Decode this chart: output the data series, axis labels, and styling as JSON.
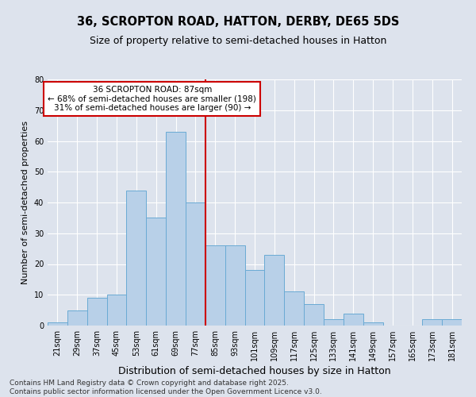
{
  "title1": "36, SCROPTON ROAD, HATTON, DERBY, DE65 5DS",
  "title2": "Size of property relative to semi-detached houses in Hatton",
  "xlabel": "Distribution of semi-detached houses by size in Hatton",
  "ylabel": "Number of semi-detached properties",
  "categories": [
    "21sqm",
    "29sqm",
    "37sqm",
    "45sqm",
    "53sqm",
    "61sqm",
    "69sqm",
    "77sqm",
    "85sqm",
    "93sqm",
    "101sqm",
    "109sqm",
    "117sqm",
    "125sqm",
    "133sqm",
    "141sqm",
    "149sqm",
    "157sqm",
    "165sqm",
    "173sqm",
    "181sqm"
  ],
  "values": [
    1,
    5,
    9,
    10,
    44,
    35,
    63,
    40,
    26,
    26,
    18,
    23,
    11,
    7,
    2,
    4,
    1,
    0,
    0,
    2,
    2
  ],
  "bar_color": "#b8d0e8",
  "bar_edgecolor": "#6aaad4",
  "vline_color": "#cc0000",
  "annotation_line1": "36 SCROPTON ROAD: 87sqm",
  "annotation_line2": "← 68% of semi-detached houses are smaller (198)",
  "annotation_line3": "31% of semi-detached houses are larger (90) →",
  "ylim": [
    0,
    80
  ],
  "yticks": [
    0,
    10,
    20,
    30,
    40,
    50,
    60,
    70,
    80
  ],
  "background_color": "#dde3ed",
  "plot_background": "#dde3ed",
  "footer_line1": "Contains HM Land Registry data © Crown copyright and database right 2025.",
  "footer_line2": "Contains public sector information licensed under the Open Government Licence v3.0.",
  "title1_fontsize": 10.5,
  "title2_fontsize": 9,
  "xlabel_fontsize": 9,
  "ylabel_fontsize": 8,
  "tick_fontsize": 7,
  "annotation_fontsize": 7.5,
  "footer_fontsize": 6.5
}
